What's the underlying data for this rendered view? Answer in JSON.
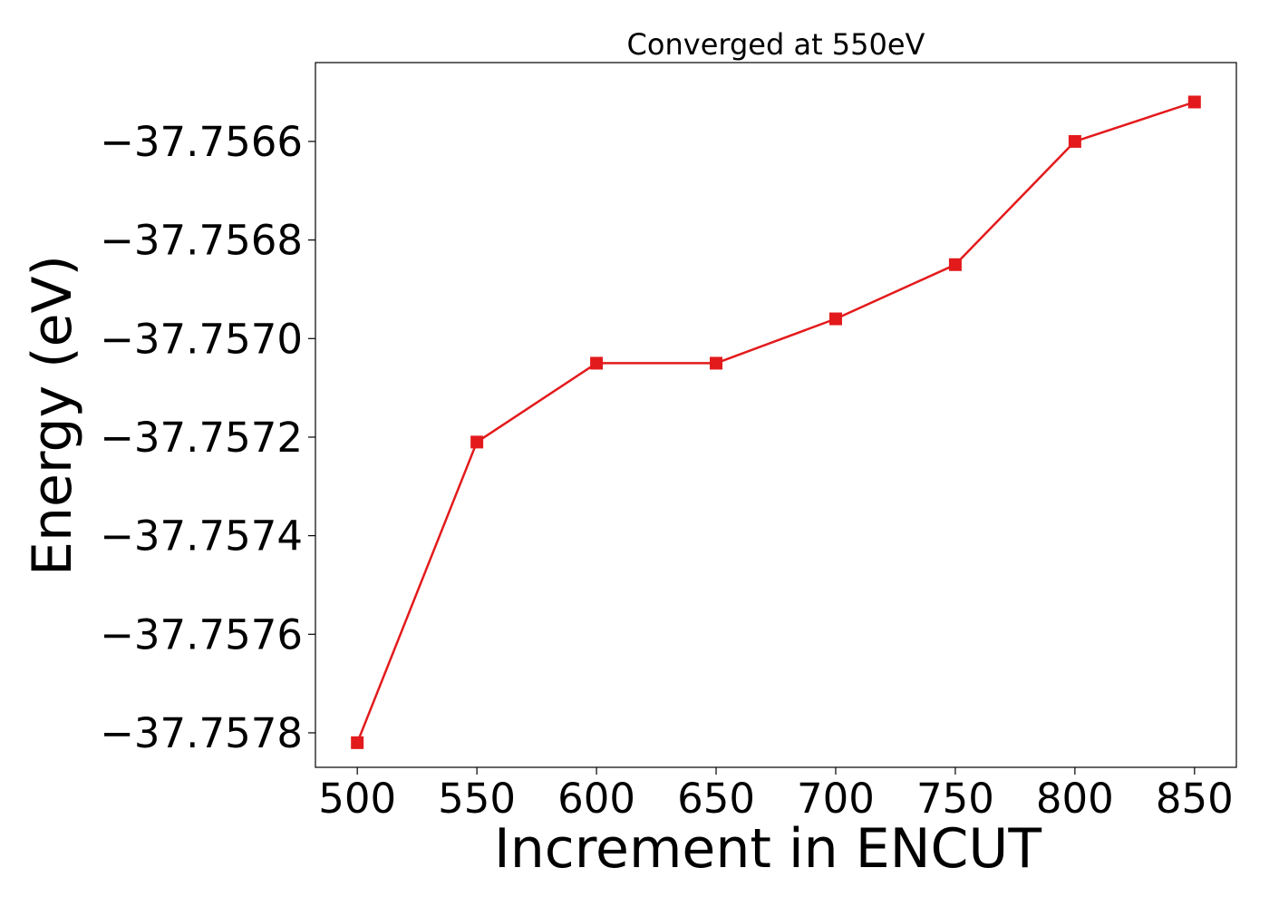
{
  "chart_data": {
    "type": "line",
    "title": "Converged at 550eV",
    "xlabel": "Increment in ENCUT",
    "ylabel": "Energy (eV)",
    "x": [
      500,
      550,
      600,
      650,
      700,
      750,
      800,
      850
    ],
    "series": [
      {
        "values": [
          -37.75782,
          -37.75721,
          -37.75705,
          -37.75705,
          -37.75696,
          -37.75685,
          -37.7566,
          -37.75652
        ],
        "color": "#e31a1c",
        "marker": "square"
      }
    ],
    "xticks": [
      500,
      550,
      600,
      650,
      700,
      750,
      800,
      850
    ],
    "xtick_labels": [
      "500",
      "550",
      "600",
      "650",
      "700",
      "750",
      "800",
      "850"
    ],
    "yticks": [
      -37.7578,
      -37.7576,
      -37.7574,
      -37.7572,
      -37.757,
      -37.7568,
      -37.7566
    ],
    "ytick_labels": [
      "−37.7578",
      "−37.7576",
      "−37.7574",
      "−37.7572",
      "−37.7570",
      "−37.7568",
      "−37.7566"
    ],
    "xlim": [
      482.5,
      867.5
    ],
    "ylim": [
      -37.75787,
      -37.75644
    ],
    "grid": false,
    "legend": "none"
  }
}
